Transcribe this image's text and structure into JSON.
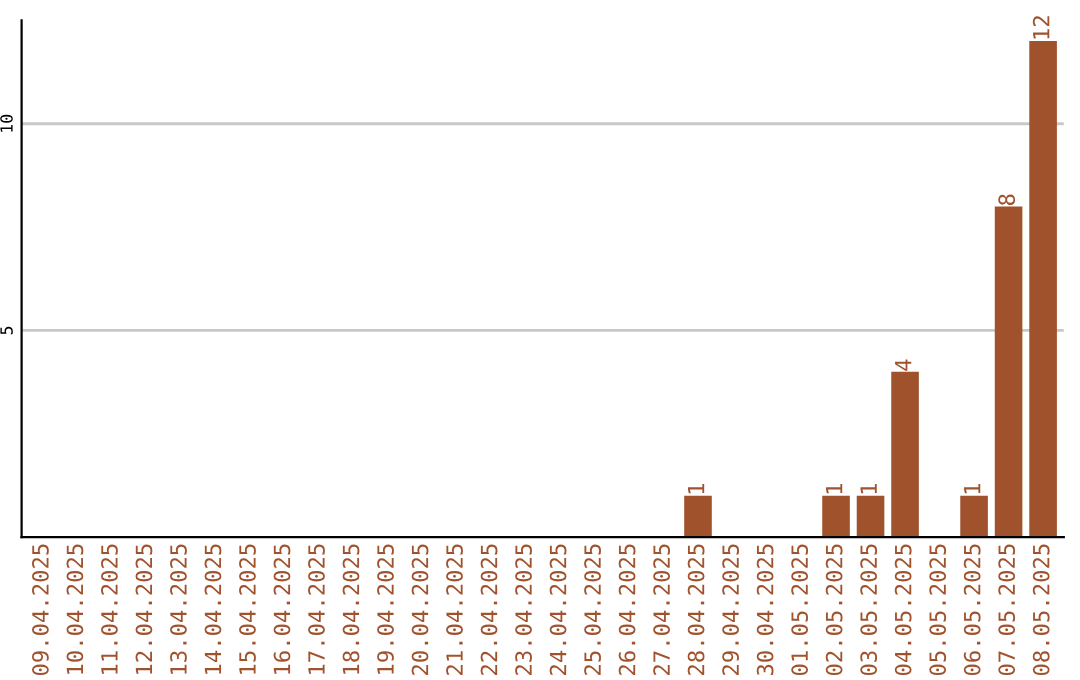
{
  "chart_data": {
    "type": "bar",
    "categories": [
      "09.04.2025",
      "10.04.2025",
      "11.04.2025",
      "12.04.2025",
      "13.04.2025",
      "14.04.2025",
      "15.04.2025",
      "16.04.2025",
      "17.04.2025",
      "18.04.2025",
      "19.04.2025",
      "20.04.2025",
      "21.04.2025",
      "22.04.2025",
      "23.04.2025",
      "24.04.2025",
      "25.04.2025",
      "26.04.2025",
      "27.04.2025",
      "28.04.2025",
      "29.04.2025",
      "30.04.2025",
      "01.05.2025",
      "02.05.2025",
      "03.05.2025",
      "04.05.2025",
      "05.05.2025",
      "06.05.2025",
      "07.05.2025",
      "08.05.2025"
    ],
    "values": [
      0,
      0,
      0,
      0,
      0,
      0,
      0,
      0,
      0,
      0,
      0,
      0,
      0,
      0,
      0,
      0,
      0,
      0,
      0,
      1,
      0,
      0,
      0,
      1,
      1,
      4,
      0,
      1,
      8,
      12
    ],
    "value_labels": [
      null,
      null,
      null,
      null,
      null,
      null,
      null,
      null,
      null,
      null,
      null,
      null,
      null,
      null,
      null,
      null,
      null,
      null,
      null,
      "1",
      null,
      null,
      null,
      "1",
      "1",
      "4",
      null,
      "1",
      "8",
      "12"
    ],
    "color": "#a0522d",
    "ylim": [
      0,
      12.5
    ],
    "yticks": [
      5,
      10
    ],
    "grid": "y",
    "legend": false
  }
}
